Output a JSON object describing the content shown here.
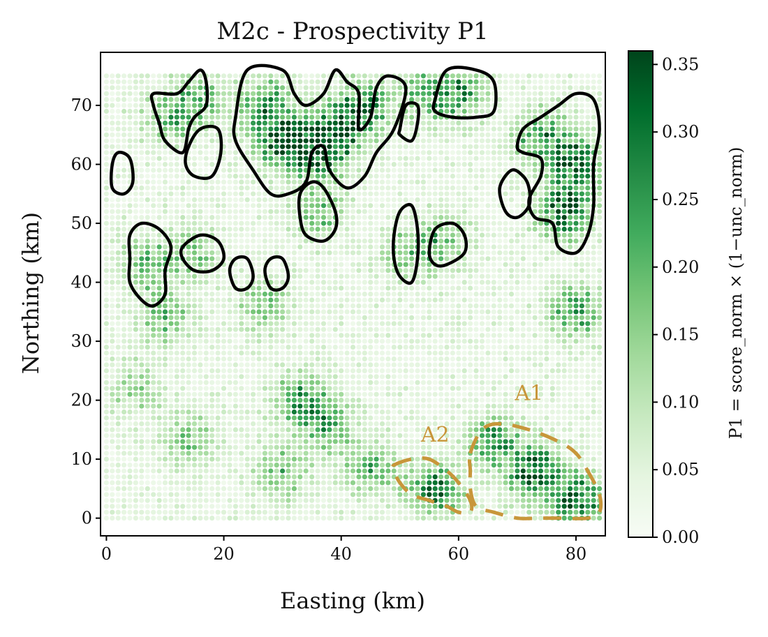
{
  "chart_data": {
    "type": "heatmap",
    "title": "M2c - Prospectivity P1",
    "xlabel": "Easting (km)",
    "ylabel": "Northing (km)",
    "xlim": [
      -1,
      85
    ],
    "ylim": [
      -3,
      79
    ],
    "xticks": [
      0,
      20,
      40,
      60,
      80
    ],
    "yticks": [
      0,
      10,
      20,
      30,
      40,
      50,
      60,
      70
    ],
    "grid": false,
    "colorbar": {
      "label": "P1 = score_norm × (1−unc_norm)",
      "ticks": [
        0.0,
        0.05,
        0.1,
        0.15,
        0.2,
        0.25,
        0.3,
        0.35
      ],
      "tick_labels": [
        "0.00",
        "0.05",
        "0.10",
        "0.15",
        "0.20",
        "0.25",
        "0.30",
        "0.35"
      ],
      "range": [
        0.0,
        0.36
      ],
      "colormap": "Greens",
      "colormap_stops": [
        "#f7fcf5",
        "#e5f5e0",
        "#c7e9c0",
        "#a1d99b",
        "#74c476",
        "#41ab5d",
        "#238b45",
        "#006d2c",
        "#00441b"
      ]
    },
    "grid_spacing_km": 1,
    "grid_extent": {
      "x": [
        0,
        84
      ],
      "y": [
        0,
        75
      ]
    },
    "hotspots": [
      {
        "x": 30,
        "y": 64,
        "value": 0.34
      },
      {
        "x": 36,
        "y": 62,
        "value": 0.3
      },
      {
        "x": 40,
        "y": 66,
        "value": 0.28
      },
      {
        "x": 27,
        "y": 70,
        "value": 0.24
      },
      {
        "x": 44,
        "y": 70,
        "value": 0.22
      },
      {
        "x": 80,
        "y": 60,
        "value": 0.34
      },
      {
        "x": 78,
        "y": 52,
        "value": 0.3
      },
      {
        "x": 74,
        "y": 65,
        "value": 0.22
      },
      {
        "x": 60,
        "y": 72,
        "value": 0.22
      },
      {
        "x": 54,
        "y": 72,
        "value": 0.16
      },
      {
        "x": 11,
        "y": 68,
        "value": 0.16
      },
      {
        "x": 16,
        "y": 71,
        "value": 0.14
      },
      {
        "x": 7,
        "y": 43,
        "value": 0.17
      },
      {
        "x": 15,
        "y": 45,
        "value": 0.14
      },
      {
        "x": 36,
        "y": 52,
        "value": 0.15
      },
      {
        "x": 57,
        "y": 47,
        "value": 0.16
      },
      {
        "x": 51,
        "y": 45,
        "value": 0.13
      },
      {
        "x": 80,
        "y": 35,
        "value": 0.22
      },
      {
        "x": 73,
        "y": 8,
        "value": 0.3
      },
      {
        "x": 80,
        "y": 3,
        "value": 0.32
      },
      {
        "x": 56,
        "y": 5,
        "value": 0.26
      },
      {
        "x": 66,
        "y": 13,
        "value": 0.22
      },
      {
        "x": 38,
        "y": 16,
        "value": 0.2
      },
      {
        "x": 33,
        "y": 20,
        "value": 0.2
      },
      {
        "x": 30,
        "y": 8,
        "value": 0.16
      },
      {
        "x": 14,
        "y": 13,
        "value": 0.14
      },
      {
        "x": 5,
        "y": 22,
        "value": 0.12
      },
      {
        "x": 45,
        "y": 8,
        "value": 0.16
      },
      {
        "x": 27,
        "y": 36,
        "value": 0.12
      },
      {
        "x": 10,
        "y": 34,
        "value": 0.15
      }
    ],
    "contours": [
      {
        "color": "#000000",
        "points": [
          [
            1,
            60
          ],
          [
            2,
            62
          ],
          [
            4,
            61
          ],
          [
            4.5,
            57
          ],
          [
            3,
            55
          ],
          [
            1,
            56
          ]
        ]
      },
      {
        "color": "#000000",
        "points": [
          [
            8,
            72
          ],
          [
            12,
            72
          ],
          [
            14,
            74
          ],
          [
            16,
            76
          ],
          [
            17,
            74
          ],
          [
            17,
            70
          ],
          [
            15,
            68
          ],
          [
            14,
            66
          ],
          [
            13,
            62
          ],
          [
            10,
            64
          ],
          [
            9,
            67
          ],
          [
            8,
            70
          ]
        ]
      },
      {
        "color": "#000000",
        "points": [
          [
            14,
            63
          ],
          [
            16,
            66
          ],
          [
            19,
            66
          ],
          [
            19.5,
            62
          ],
          [
            18,
            58
          ],
          [
            15,
            58
          ],
          [
            13.5,
            60
          ]
        ]
      },
      {
        "color": "#000000",
        "points": [
          [
            22,
            68
          ],
          [
            24,
            76
          ],
          [
            30,
            76
          ],
          [
            32,
            72
          ],
          [
            34,
            70
          ],
          [
            37,
            72
          ],
          [
            39,
            76
          ],
          [
            41,
            74
          ],
          [
            43,
            72
          ],
          [
            43,
            66
          ],
          [
            45,
            68
          ],
          [
            46,
            73
          ],
          [
            48,
            75
          ],
          [
            51,
            73
          ],
          [
            49,
            66
          ],
          [
            46,
            62
          ],
          [
            44,
            58
          ],
          [
            41,
            56
          ],
          [
            38,
            59
          ],
          [
            37,
            63
          ],
          [
            35,
            62
          ],
          [
            34,
            57
          ],
          [
            31,
            55
          ],
          [
            28,
            55
          ],
          [
            25,
            59
          ],
          [
            22,
            64
          ]
        ]
      },
      {
        "color": "#000000",
        "points": [
          [
            33,
            55
          ],
          [
            35,
            57
          ],
          [
            37,
            56
          ],
          [
            39,
            52
          ],
          [
            39,
            49
          ],
          [
            37,
            47
          ],
          [
            34,
            48
          ],
          [
            33,
            51
          ]
        ]
      },
      {
        "color": "#000000",
        "points": [
          [
            50,
            66
          ],
          [
            51,
            70
          ],
          [
            53,
            70
          ],
          [
            53,
            67
          ],
          [
            52,
            64
          ],
          [
            50,
            65
          ]
        ]
      },
      {
        "color": "#000000",
        "points": [
          [
            56,
            71
          ],
          [
            58,
            76
          ],
          [
            63,
            76
          ],
          [
            66,
            74
          ],
          [
            66,
            69
          ],
          [
            63,
            68
          ],
          [
            59,
            68
          ],
          [
            56,
            69
          ]
        ]
      },
      {
        "color": "#000000",
        "points": [
          [
            67,
            56
          ],
          [
            69,
            59
          ],
          [
            71,
            58
          ],
          [
            72,
            56
          ],
          [
            72,
            53
          ],
          [
            70,
            51
          ],
          [
            68,
            52
          ]
        ]
      },
      {
        "color": "#000000",
        "points": [
          [
            70,
            63
          ],
          [
            71,
            66
          ],
          [
            74,
            68
          ],
          [
            77,
            70
          ],
          [
            80,
            72
          ],
          [
            83,
            71
          ],
          [
            84,
            66
          ],
          [
            83,
            60
          ],
          [
            83,
            53
          ],
          [
            82,
            48
          ],
          [
            80,
            45
          ],
          [
            77,
            46
          ],
          [
            76,
            50
          ],
          [
            73,
            51
          ],
          [
            72,
            54
          ],
          [
            74,
            58
          ],
          [
            74,
            61
          ],
          [
            71,
            62
          ]
        ]
      },
      {
        "color": "#000000",
        "points": [
          [
            49,
            44
          ],
          [
            49,
            48
          ],
          [
            50,
            52
          ],
          [
            52,
            53
          ],
          [
            53,
            49
          ],
          [
            53,
            44
          ],
          [
            52,
            40
          ],
          [
            50,
            41
          ]
        ]
      },
      {
        "color": "#000000",
        "points": [
          [
            55,
            45
          ],
          [
            56,
            49
          ],
          [
            59,
            50
          ],
          [
            61,
            48
          ],
          [
            61,
            45
          ],
          [
            58,
            43
          ],
          [
            56,
            43
          ]
        ]
      },
      {
        "color": "#000000",
        "points": [
          [
            4,
            48
          ],
          [
            6,
            50
          ],
          [
            9,
            49
          ],
          [
            11,
            46
          ],
          [
            10,
            42
          ],
          [
            10,
            38
          ],
          [
            8,
            36
          ],
          [
            6,
            37
          ],
          [
            4,
            40
          ],
          [
            4,
            44
          ]
        ]
      },
      {
        "color": "#000000",
        "points": [
          [
            13,
            44
          ],
          [
            13,
            46
          ],
          [
            16,
            48
          ],
          [
            19,
            47
          ],
          [
            20,
            44
          ],
          [
            18,
            42
          ],
          [
            15,
            42
          ]
        ]
      },
      {
        "color": "#000000",
        "points": [
          [
            21,
            42
          ],
          [
            22,
            44
          ],
          [
            24,
            44
          ],
          [
            25,
            41
          ],
          [
            24,
            39
          ],
          [
            22,
            39
          ]
        ]
      },
      {
        "color": "#000000",
        "points": [
          [
            27,
            42
          ],
          [
            28,
            44
          ],
          [
            30,
            44
          ],
          [
            31,
            41
          ],
          [
            30,
            39
          ],
          [
            28,
            39
          ]
        ]
      }
    ],
    "annotations": [
      {
        "label": "A1",
        "label_x": 72,
        "label_y": 20,
        "color": "#c8963a",
        "points": [
          [
            62,
            11
          ],
          [
            64,
            15
          ],
          [
            67,
            16
          ],
          [
            72,
            15
          ],
          [
            77,
            13
          ],
          [
            80,
            11
          ],
          [
            82,
            8
          ],
          [
            84,
            4
          ],
          [
            84,
            1
          ],
          [
            82,
            0
          ],
          [
            77,
            0
          ],
          [
            74,
            0
          ],
          [
            70,
            0
          ],
          [
            66,
            1
          ],
          [
            63,
            2
          ],
          [
            62,
            5
          ],
          [
            62,
            8
          ]
        ]
      },
      {
        "label": "A2",
        "label_x": 56,
        "label_y": 13,
        "color": "#c8963a",
        "points": [
          [
            49,
            9
          ],
          [
            52,
            10
          ],
          [
            55,
            10
          ],
          [
            58,
            8
          ],
          [
            60,
            6
          ],
          [
            62,
            3
          ],
          [
            62,
            1
          ],
          [
            60,
            1
          ],
          [
            58,
            2
          ],
          [
            55,
            3
          ],
          [
            52,
            4
          ],
          [
            50,
            6
          ],
          [
            49,
            8
          ]
        ]
      }
    ]
  }
}
